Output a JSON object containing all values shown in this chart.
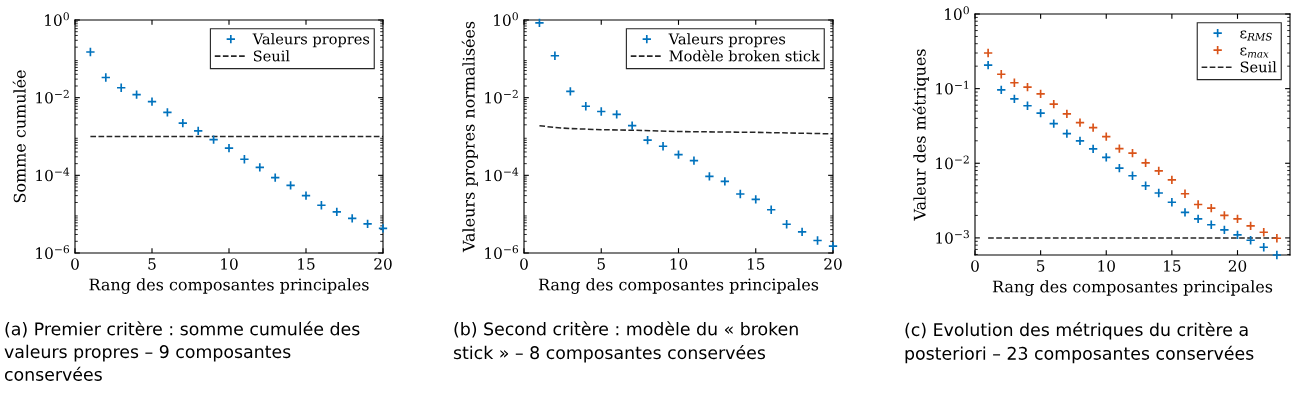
{
  "chart_data": [
    {
      "type": "scatter",
      "xlabel": "Rang des composantes principales",
      "ylabel": "Somme cumulée",
      "x": [
        1,
        2,
        3,
        4,
        5,
        6,
        7,
        8,
        9,
        10,
        11,
        12,
        13,
        14,
        15,
        16,
        17,
        18,
        19,
        20
      ],
      "marker": "cross",
      "log": "y",
      "grid": false,
      "legend": "top right",
      "xlim": [
        0,
        20
      ],
      "xticks": [
        0,
        5,
        10,
        15,
        20
      ],
      "ylim": [
        1e-06,
        1
      ],
      "yticks": [
        {
          "value": 1,
          "label": "10$^{0}$"
        },
        {
          "value": 0.01,
          "label": "10$^{−2}$"
        },
        {
          "value": 0.0001,
          "label": "10$^{−4}$"
        },
        {
          "value": 1e-06,
          "label": "10$^{−6}$"
        }
      ],
      "series": [
        {
          "name": "Valeurs propres",
          "color": "#0072bd",
          "values": [
            0.15,
            0.033,
            0.018,
            0.012,
            0.0079,
            0.0042,
            0.0022,
            0.0014,
            0.00083,
            0.0005,
            0.00026,
            0.00016,
            8.7e-05,
            5.5e-05,
            3e-05,
            1.7e-05,
            1.15e-05,
            7.8e-06,
            5.6e-06,
            4.3e-06
          ]
        }
      ],
      "ref_lines": [
        {
          "axis": "y",
          "value": 0.001,
          "label": "Seuil",
          "color": "#262626",
          "line_style": "dashed"
        }
      ],
      "annotations": [
        "(a) Premier critère : somme cumulée des valeurs propres – 9 composantes conservées"
      ]
    },
    {
      "type": "scatter",
      "xlabel": "Rang des composantes principales",
      "ylabel": "Valeurs propres normalisées",
      "x": [
        1,
        2,
        3,
        4,
        5,
        6,
        7,
        8,
        9,
        10,
        11,
        12,
        13,
        14,
        15,
        16,
        17,
        18,
        19,
        20
      ],
      "log": "y",
      "grid": false,
      "legend": "top right",
      "xlim": [
        0,
        20
      ],
      "xticks": [
        0,
        5,
        10,
        15,
        20
      ],
      "ylim": [
        1e-06,
        1
      ],
      "yticks": [
        {
          "value": 1,
          "label": "10$^{0}$"
        },
        {
          "value": 0.01,
          "label": "10$^{−2}$"
        },
        {
          "value": 0.0001,
          "label": "10$^{−4}$"
        },
        {
          "value": 1e-06,
          "label": "10$^{−6}$"
        }
      ],
      "series": [
        {
          "name": "Valeurs propres",
          "marker": "cross",
          "color": "#0072bd",
          "values": [
            0.84,
            0.12,
            0.0145,
            0.006,
            0.0044,
            0.0037,
            0.0019,
            0.00081,
            0.00056,
            0.00034,
            0.00024,
            9.4e-05,
            7e-05,
            3.3e-05,
            2.4e-05,
            1.3e-05,
            5.5e-06,
            3.5e-06,
            2.1e-06,
            1.5e-06
          ]
        },
        {
          "name": "Modèle broken stick",
          "type": "line",
          "line_style": "dashed",
          "color": "#262626",
          "x": [
            1,
            2,
            3,
            5,
            7,
            10,
            15,
            20
          ],
          "values": [
            0.0019,
            0.0017,
            0.0016,
            0.0015,
            0.00145,
            0.00134,
            0.00128,
            0.00117
          ]
        }
      ],
      "annotations": [
        "(b) Second critère : modèle du « broken stick » – 8 composantes conservées"
      ]
    },
    {
      "type": "scatter",
      "xlabel": "Rang des composantes principales",
      "ylabel": "Valeur des métriques",
      "x": [
        1,
        2,
        3,
        4,
        5,
        6,
        7,
        8,
        9,
        10,
        11,
        12,
        13,
        14,
        15,
        16,
        17,
        18,
        19,
        20,
        21,
        22,
        23
      ],
      "marker": "cross",
      "log": "y",
      "grid": false,
      "legend": "top right",
      "xlim": [
        0,
        24
      ],
      "xticks": [
        0,
        5,
        10,
        15,
        20
      ],
      "ylim": [
        0.00059,
        1
      ],
      "yticks": [
        {
          "value": 1,
          "label": "10$^{0}$"
        },
        {
          "value": 0.1,
          "label": "10$^{−1}$"
        },
        {
          "value": 0.01,
          "label": "10$^{−2}$"
        },
        {
          "value": 0.001,
          "label": "10$^{−3}$"
        }
      ],
      "series": [
        {
          "name": "ε$_{RMS}$",
          "color": "#0072bd",
          "values": [
            0.207,
            0.096,
            0.073,
            0.059,
            0.047,
            0.034,
            0.025,
            0.02,
            0.0156,
            0.012,
            0.0086,
            0.0068,
            0.005,
            0.004,
            0.003,
            0.0022,
            0.0018,
            0.0015,
            0.00128,
            0.0011,
            0.00093,
            0.00075,
            0.00059
          ]
        },
        {
          "name": "ε$_{max}$",
          "color": "#d95319",
          "values": [
            0.3,
            0.156,
            0.12,
            0.105,
            0.085,
            0.062,
            0.046,
            0.035,
            0.03,
            0.0228,
            0.0157,
            0.0137,
            0.0101,
            0.0079,
            0.006,
            0.0039,
            0.0028,
            0.0025,
            0.002,
            0.0018,
            0.00145,
            0.00119,
            0.00099
          ]
        }
      ],
      "ref_lines": [
        {
          "axis": "y",
          "value": 0.001,
          "label": "Seuil",
          "color": "#262626",
          "line_style": "dashed"
        }
      ],
      "annotations": [
        "(c) Evolution des métriques du critère a posteriori – 23 composantes conservées"
      ]
    }
  ]
}
